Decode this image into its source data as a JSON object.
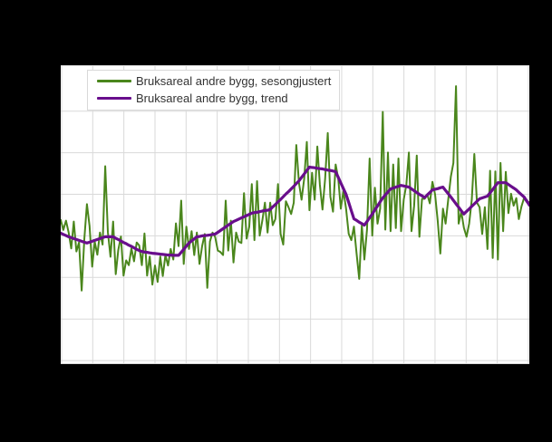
{
  "canvas": {
    "background_color": "#000000",
    "plot_background_color": "#ffffff",
    "grid_color": "#d9d9d9"
  },
  "legend": {
    "items": [
      {
        "label": "Bruksareal andre bygg, sesongjustert",
        "color": "#4a861c"
      },
      {
        "label": "Bruksareal andre bygg, trend",
        "color": "#690e8c"
      }
    ]
  },
  "chart_data": {
    "type": "line",
    "title": "",
    "xlabel": "",
    "ylabel": "",
    "x_unit": "month_index",
    "x_range": [
      0,
      179
    ],
    "ylim": [
      0,
      100
    ],
    "value_scale": "percent_of_plot_height_estimated_no_axis_labels_visible",
    "grid": {
      "on": true,
      "vertical_lines": 16,
      "horizontal_lines": 7,
      "color": "#d9d9d9"
    },
    "legend_position": "top-left-inside",
    "series": [
      {
        "name": "Bruksareal andre bygg, sesongjustert",
        "color": "#4a861c",
        "stroke_width": 2,
        "values": [
          48.2,
          44.9,
          48,
          44.1,
          38.7,
          47.7,
          37.7,
          40.7,
          24.6,
          41.7,
          53.5,
          46.2,
          32.6,
          40.9,
          36.6,
          44,
          40,
          66.2,
          44.2,
          35.9,
          47.7,
          30.1,
          38.2,
          42.7,
          29.6,
          34.7,
          33.1,
          38.7,
          34.4,
          40.7,
          39.7,
          33.1,
          43.7,
          29.6,
          36,
          26.6,
          33,
          27.5,
          36,
          29.5,
          36.5,
          33,
          38.5,
          35,
          47.1,
          39.5,
          54.7,
          33.5,
          46,
          38.5,
          44.5,
          36.5,
          44,
          33.5,
          39.5,
          43.5,
          25.5,
          41,
          44,
          42.5,
          38,
          37.5,
          36.5,
          54.7,
          38,
          48,
          34,
          44,
          41,
          40.5,
          57.2,
          42,
          46,
          60.2,
          41.5,
          61.2,
          43,
          48,
          54,
          44,
          54,
          46.5,
          48.5,
          60.2,
          43.5,
          40,
          54.5,
          52.5,
          50.2,
          54,
          73.3,
          60.7,
          55,
          62,
          74.3,
          51.5,
          64,
          55,
          72.8,
          60,
          51.7,
          62,
          77.3,
          56,
          51,
          66.8,
          62,
          52,
          58,
          52,
          43.6,
          41.5,
          46,
          37,
          28.5,
          46.5,
          35,
          45,
          68.8,
          43,
          59,
          47,
          52,
          84.4,
          45,
          70.8,
          44.5,
          66.8,
          45.5,
          68.8,
          44.5,
          55,
          60,
          70.8,
          44.5,
          53,
          69.8,
          42.6,
          55.3,
          55.3,
          56.8,
          53.8,
          61,
          56.8,
          48,
          37,
          52,
          47,
          55,
          62.7,
          67.3,
          93,
          47,
          51,
          45.6,
          42.6,
          47,
          55,
          70.3,
          54,
          52.5,
          43.5,
          52.5,
          38.5,
          64.7,
          35.5,
          64.5,
          35,
          67.3,
          44.5,
          64.3,
          50.5,
          57,
          53,
          55.5,
          48.5,
          52.7,
          55.6,
          54.2,
          54.2
        ]
      },
      {
        "name": "Bruksareal andre bygg, trend",
        "color": "#690e8c",
        "stroke_width": 3.2,
        "values": [
          43.8,
          43.4,
          43,
          42.6,
          42.3,
          42,
          41.7,
          41.4,
          41.1,
          40.8,
          40.5,
          40.8,
          41.1,
          41.4,
          41.7,
          42,
          42.3,
          42.6,
          42.6,
          42.6,
          42.6,
          42.1,
          41.7,
          41.2,
          40.7,
          40.3,
          39.8,
          39.4,
          38.9,
          38.4,
          38,
          37.7,
          37.5,
          37.4,
          37.2,
          37.1,
          37,
          36.9,
          36.8,
          36.7,
          36.6,
          36.5,
          36.5,
          36.4,
          36.4,
          36.4,
          37.4,
          38.4,
          39.5,
          40.5,
          41.2,
          41.9,
          42.6,
          42.7,
          42.9,
          43,
          43.1,
          43.2,
          43.4,
          43.5,
          44.1,
          44.7,
          45.3,
          45.9,
          46.5,
          47.1,
          47.7,
          48.1,
          48.5,
          48.9,
          49.3,
          49.7,
          50.1,
          50.5,
          50.7,
          50.8,
          51,
          51.2,
          51.4,
          51.5,
          51.7,
          52.6,
          53.4,
          54.3,
          55.1,
          56,
          56.9,
          57.7,
          58.6,
          59.5,
          60.4,
          61.3,
          62.5,
          63.6,
          64.8,
          65.9,
          65.8,
          65.7,
          65.5,
          65.4,
          65.3,
          65.1,
          64.9,
          64.8,
          64.6,
          64.4,
          62.5,
          60.6,
          58.7,
          56.8,
          54.1,
          51.3,
          48.6,
          48.1,
          47.5,
          47,
          46.5,
          47.7,
          49,
          50.2,
          51.6,
          52.9,
          54.3,
          55.6,
          56.6,
          57.6,
          58.6,
          58.9,
          59.2,
          59.5,
          59.8,
          59.6,
          59.4,
          59.2,
          58.6,
          58,
          57.4,
          56.8,
          56.3,
          55.7,
          56.6,
          57.4,
          58.3,
          58.5,
          58.7,
          59,
          59.2,
          58.1,
          57,
          55.9,
          54.8,
          53.6,
          52.5,
          51.3,
          50.2,
          51.1,
          51.9,
          52.8,
          53.6,
          54.5,
          55.3,
          55.6,
          55.9,
          56.2,
          57.3,
          58.4,
          59.6,
          60.7,
          60.7,
          60.7,
          60.7,
          60.1,
          59.5,
          58.9,
          58.3,
          57.5,
          56.7,
          55.9,
          54.6,
          53.2
        ]
      }
    ]
  }
}
